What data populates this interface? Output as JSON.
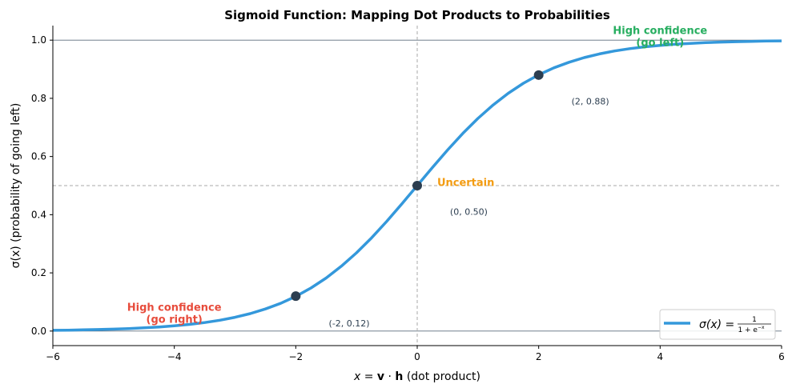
{
  "chart_data": {
    "type": "line",
    "title": "Sigmoid Function: Mapping Dot Products to Probabilities",
    "xlabel": "x = v · h (dot product)",
    "xlabel_parts": {
      "lhs": "x = ",
      "v": "v",
      "dot": " · ",
      "h": "h",
      "rest": " (dot product)"
    },
    "ylabel": "σ(x) (probability of going left)",
    "xlim": [
      -6,
      6
    ],
    "ylim": [
      -0.05,
      1.05
    ],
    "xticks": [
      -6,
      -4,
      -2,
      0,
      2,
      4,
      6
    ],
    "xtick_labels": [
      "−6",
      "−4",
      "−2",
      "0",
      "2",
      "4",
      "6"
    ],
    "yticks": [
      0.0,
      0.2,
      0.4,
      0.6,
      0.8,
      1.0
    ],
    "ytick_labels": [
      "0.0",
      "0.2",
      "0.4",
      "0.6",
      "0.8",
      "1.0"
    ],
    "grid": false,
    "legend": {
      "placement": "lower-right",
      "label": "σ(x) = 1 / (1 + e^−x)",
      "lhs": "σ(x) =",
      "num": "1",
      "den": "1 + e",
      "exp": "−x"
    },
    "series": [
      {
        "name": "σ(x) = 1 / (1 + e^−x)",
        "color": "#3498db",
        "x": [
          -6,
          -5.75,
          -5.5,
          -5.25,
          -5,
          -4.75,
          -4.5,
          -4.25,
          -4,
          -3.75,
          -3.5,
          -3.25,
          -3,
          -2.75,
          -2.5,
          -2.25,
          -2,
          -1.75,
          -1.5,
          -1.25,
          -1,
          -0.75,
          -0.5,
          -0.25,
          0,
          0.25,
          0.5,
          0.75,
          1,
          1.25,
          1.5,
          1.75,
          2,
          2.25,
          2.5,
          2.75,
          3,
          3.25,
          3.5,
          3.75,
          4,
          4.25,
          4.5,
          4.75,
          5,
          5.25,
          5.5,
          5.75,
          6
        ],
        "y": [
          0.0025,
          0.0032,
          0.0041,
          0.0052,
          0.0067,
          0.0086,
          0.011,
          0.0141,
          0.018,
          0.023,
          0.0293,
          0.0373,
          0.0474,
          0.0601,
          0.0759,
          0.0953,
          0.1192,
          0.148,
          0.1824,
          0.2227,
          0.2689,
          0.3208,
          0.3775,
          0.4378,
          0.5,
          0.5622,
          0.6225,
          0.6792,
          0.7311,
          0.7773,
          0.8176,
          0.852,
          0.8808,
          0.9047,
          0.9241,
          0.9399,
          0.9526,
          0.9627,
          0.9707,
          0.977,
          0.982,
          0.9859,
          0.989,
          0.9914,
          0.9933,
          0.9948,
          0.9959,
          0.9968,
          0.9975
        ]
      }
    ],
    "highlight_points": [
      {
        "x": -2,
        "y": 0.12,
        "label": "(-2, 0.12)",
        "label_x": -1.12,
        "label_y": 0.027
      },
      {
        "x": 0,
        "y": 0.5,
        "label": "(0, 0.50)",
        "label_x": 0.85,
        "label_y": 0.41
      },
      {
        "x": 2,
        "y": 0.88,
        "label": "(2, 0.88)",
        "label_x": 2.85,
        "label_y": 0.79
      }
    ],
    "point_color": "#2c3e50",
    "reference_lines": {
      "horizontal_solid": [
        0,
        1
      ],
      "horizontal_dashed": [
        0.5
      ],
      "vertical_dashed": [
        0
      ]
    },
    "annotations": [
      {
        "lines": [
          "High confidence",
          "(go left)"
        ],
        "x": 4.0,
        "y": 1.012,
        "color": "#27ae60"
      },
      {
        "lines": [
          "Uncertain"
        ],
        "x": 0.8,
        "y": 0.51,
        "color": "#f39c12"
      },
      {
        "lines": [
          "High confidence",
          "(go right)"
        ],
        "x": -4.0,
        "y": 0.06,
        "color": "#e74c3c"
      }
    ]
  }
}
